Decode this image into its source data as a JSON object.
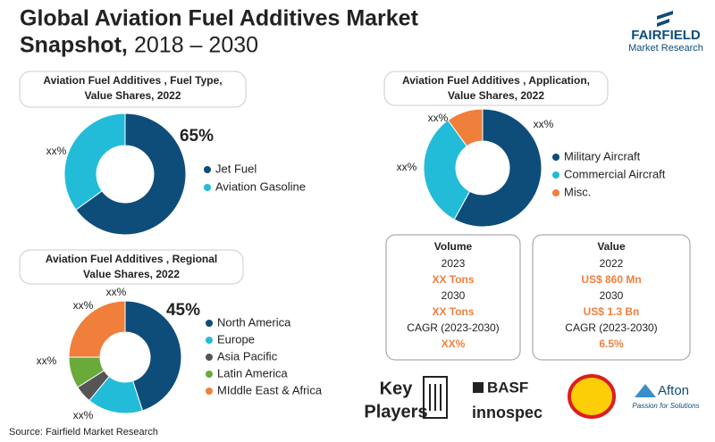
{
  "title_line1": "Global Aviation Fuel Additives Market",
  "title_bold": "Snapshot,",
  "title_years": "2018 – 2030",
  "logo": {
    "name": "FAIRFIELD",
    "sub": "Market Research"
  },
  "volume": {
    "heading": "Volume",
    "year1": "2023",
    "value1": "XX Tons",
    "year2": "2030",
    "value2": "XX Tons",
    "cagr_label": "CAGR (2023-2030)",
    "cagr": "XX%"
  },
  "value": {
    "heading": "Value",
    "year1": "2022",
    "value1": "US$ 860 Mn",
    "year2": "2030",
    "value2": "US$ 1.3 Bn",
    "cagr_label": "CAGR (2023-2030)",
    "cagr": "6.5%"
  },
  "key_players": {
    "line1": "Key",
    "line2": "Players",
    "companies": [
      "BASF",
      "innospec",
      "Afton"
    ],
    "afton_tagline": "Passion for Solutions"
  },
  "source": "Source: Fairfield Market Research",
  "chart_data": [
    {
      "type": "pie",
      "title": [
        "Aviation Fuel Additives , Fuel Type,",
        "Value Shares, 2022"
      ],
      "categories": [
        "Jet Fuel",
        "Aviation Gasoline"
      ],
      "values": [
        65,
        35
      ],
      "value_labels": [
        "65%",
        "xx%"
      ],
      "colors": [
        "#0e4d7a",
        "#22bcd8"
      ]
    },
    {
      "type": "pie",
      "title": [
        "Aviation Fuel Additives , Application,",
        "Value Shares, 2022"
      ],
      "categories": [
        "Military Aircraft",
        "Commercial Aircraft",
        "Misc."
      ],
      "values": [
        58,
        32,
        10
      ],
      "value_labels": [
        "xx%",
        "xx%",
        "xx%"
      ],
      "colors": [
        "#0e4d7a",
        "#22bcd8",
        "#f07f3c"
      ]
    },
    {
      "type": "pie",
      "title": [
        "Aviation Fuel Additives , Regional",
        "Value Shares, 2022"
      ],
      "categories": [
        "North America",
        "Europe",
        "Asia Pacific",
        "Latin America",
        "MIddle East & Africa"
      ],
      "values": [
        45,
        16,
        5,
        9,
        25
      ],
      "value_labels": [
        "45%",
        "xx%",
        "xx%",
        "xx%",
        "xx%"
      ],
      "colors": [
        "#0e4d7a",
        "#22bcd8",
        "#555555",
        "#6aaa3a",
        "#f07f3c"
      ]
    }
  ]
}
